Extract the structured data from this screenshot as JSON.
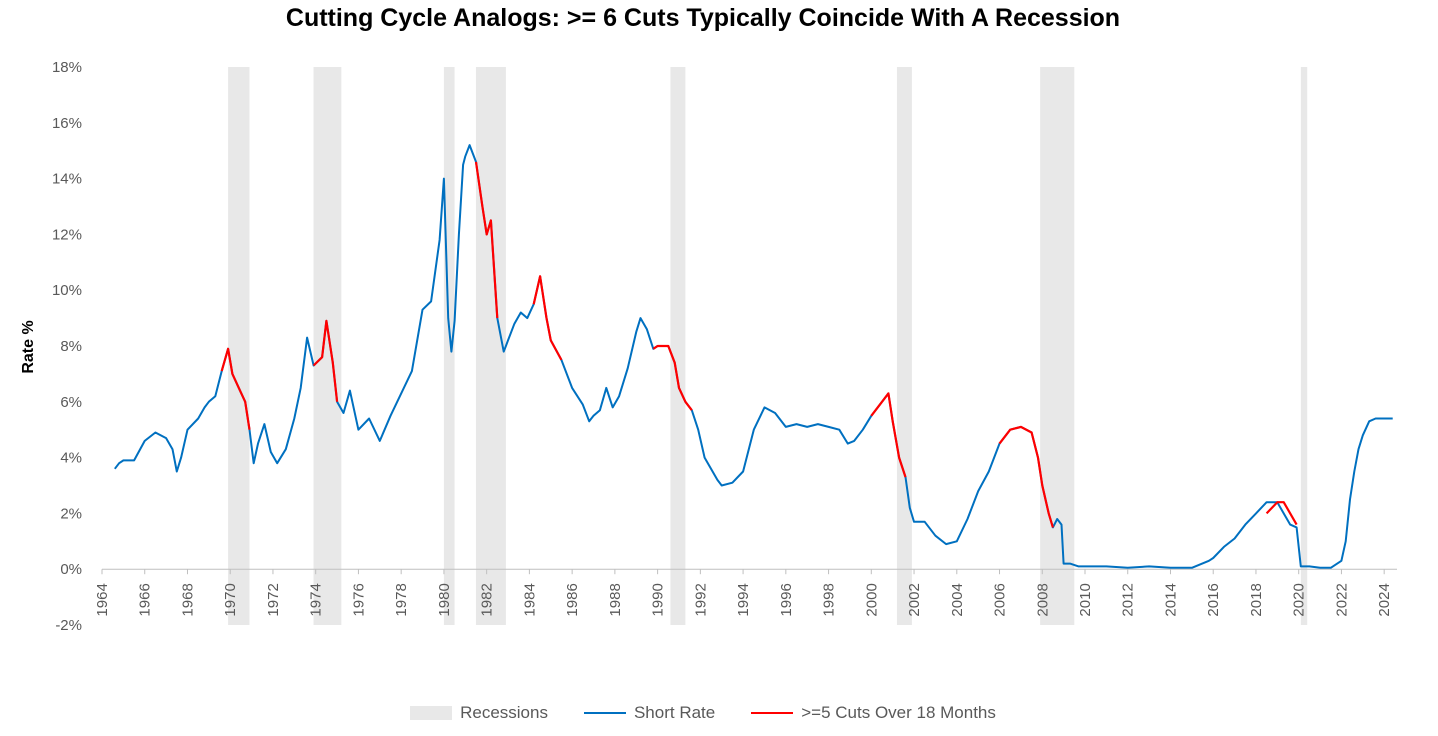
{
  "chart_data": {
    "type": "line",
    "title": "Cutting Cycle Analogs: >= 6 Cuts Typically Coincide With A Recession",
    "xlabel": "",
    "ylabel": "Rate %",
    "ylim": [
      -2,
      18
    ],
    "y_ticks": [
      -2,
      0,
      2,
      4,
      6,
      8,
      10,
      12,
      14,
      16,
      18
    ],
    "y_tick_labels": [
      "-2%",
      "0%",
      "2%",
      "4%",
      "6%",
      "8%",
      "10%",
      "12%",
      "14%",
      "16%",
      "18%"
    ],
    "xlim": [
      1964,
      2024.6
    ],
    "x_ticks": [
      1964,
      1966,
      1968,
      1970,
      1972,
      1974,
      1976,
      1978,
      1980,
      1982,
      1984,
      1986,
      1988,
      1990,
      1992,
      1994,
      1996,
      1998,
      2000,
      2002,
      2004,
      2006,
      2008,
      2010,
      2012,
      2014,
      2016,
      2018,
      2020,
      2022,
      2024
    ],
    "x_tick_labels": [
      "1964",
      "1966",
      "1968",
      "1970",
      "1972",
      "1974",
      "1976",
      "1978",
      "1980",
      "1982",
      "1984",
      "1986",
      "1988",
      "1990",
      "1992",
      "1994",
      "1996",
      "1998",
      "2000",
      "2002",
      "2004",
      "2006",
      "2008",
      "2010",
      "2012",
      "2014",
      "2016",
      "2018",
      "2020",
      "2022",
      "2024"
    ],
    "recessions": [
      [
        1969.9,
        1970.9
      ],
      [
        1973.9,
        1975.2
      ],
      [
        1980.0,
        1980.5
      ],
      [
        1981.5,
        1982.9
      ],
      [
        1990.6,
        1991.3
      ],
      [
        2001.2,
        2001.9
      ],
      [
        2007.9,
        2009.5
      ],
      [
        2020.1,
        2020.4
      ]
    ],
    "series": [
      {
        "name": "Short Rate",
        "color": "#0070c0",
        "x": [
          1964.6,
          1964.8,
          1965.0,
          1965.5,
          1966.0,
          1966.5,
          1967.0,
          1967.3,
          1967.5,
          1967.7,
          1968.0,
          1968.5,
          1968.8,
          1969.0,
          1969.3,
          1969.6,
          1969.9,
          1970.1,
          1970.4,
          1970.7,
          1970.9,
          1971.1,
          1971.3,
          1971.6,
          1971.9,
          1972.2,
          1972.6,
          1973.0,
          1973.3,
          1973.6,
          1973.9,
          1974.3,
          1974.5,
          1974.8,
          1975.0,
          1975.3,
          1975.6,
          1976.0,
          1976.5,
          1977.0,
          1977.5,
          1978.0,
          1978.5,
          1979.0,
          1979.4,
          1979.8,
          1980.0,
          1980.2,
          1980.35,
          1980.5,
          1980.7,
          1980.9,
          1981.0,
          1981.2,
          1981.5,
          1981.8,
          1982.0,
          1982.2,
          1982.5,
          1982.8,
          1982.9,
          1983.0,
          1983.3,
          1983.6,
          1983.9,
          1984.2,
          1984.5,
          1984.8,
          1985.0,
          1985.5,
          1986.0,
          1986.5,
          1986.8,
          1987.0,
          1987.3,
          1987.6,
          1987.9,
          1988.2,
          1988.6,
          1989.0,
          1989.2,
          1989.5,
          1989.8,
          1990.0,
          1990.5,
          1990.8,
          1991.0,
          1991.3,
          1991.6,
          1991.9,
          1992.2,
          1992.5,
          1992.8,
          1993.0,
          1993.5,
          1994.0,
          1994.5,
          1995.0,
          1995.5,
          1996.0,
          1996.5,
          1997.0,
          1997.5,
          1998.0,
          1998.5,
          1998.9,
          1999.2,
          1999.6,
          2000.0,
          2000.5,
          2000.8,
          2001.0,
          2001.3,
          2001.6,
          2001.8,
          2002.0,
          2002.5,
          2003.0,
          2003.5,
          2004.0,
          2004.5,
          2005.0,
          2005.5,
          2006.0,
          2006.5,
          2007.0,
          2007.5,
          2007.8,
          2008.0,
          2008.3,
          2008.5,
          2008.7,
          2008.9,
          2009.0,
          2009.3,
          2009.7,
          2010.0,
          2011.0,
          2012.0,
          2013.0,
          2014.0,
          2015.0,
          2015.8,
          2016.0,
          2016.5,
          2017.0,
          2017.5,
          2018.0,
          2018.5,
          2019.0,
          2019.3,
          2019.6,
          2019.9,
          2020.1,
          2020.2,
          2020.5,
          2021.0,
          2021.5,
          2022.0,
          2022.2,
          2022.4,
          2022.6,
          2022.8,
          2023.0,
          2023.3,
          2023.6,
          2024.0,
          2024.4
        ],
        "values": [
          3.6,
          3.8,
          3.9,
          3.9,
          4.6,
          4.9,
          4.7,
          4.3,
          3.5,
          4.0,
          5.0,
          5.4,
          5.8,
          6.0,
          6.2,
          7.1,
          7.9,
          7.0,
          6.5,
          6.0,
          5.0,
          3.8,
          4.5,
          5.2,
          4.2,
          3.8,
          4.3,
          5.4,
          6.5,
          8.3,
          7.3,
          7.6,
          8.9,
          7.4,
          6.0,
          5.6,
          6.4,
          5.0,
          5.4,
          4.6,
          5.5,
          6.3,
          7.1,
          9.3,
          9.6,
          11.8,
          14.0,
          9.0,
          7.8,
          8.9,
          12.0,
          14.5,
          14.8,
          15.2,
          14.6,
          13.0,
          12.0,
          12.5,
          9.0,
          7.8,
          8.0,
          8.2,
          8.8,
          9.2,
          9.0,
          9.5,
          10.5,
          9.0,
          8.2,
          7.5,
          6.5,
          5.9,
          5.3,
          5.5,
          5.7,
          6.5,
          5.8,
          6.2,
          7.2,
          8.5,
          9.0,
          8.6,
          7.9,
          8.0,
          8.0,
          7.4,
          6.5,
          6.0,
          5.7,
          5.0,
          4.0,
          3.6,
          3.2,
          3.0,
          3.1,
          3.5,
          5.0,
          5.8,
          5.6,
          5.1,
          5.2,
          5.1,
          5.2,
          5.1,
          5.0,
          4.5,
          4.6,
          5.0,
          5.5,
          6.0,
          6.3,
          5.3,
          4.0,
          3.3,
          2.2,
          1.7,
          1.7,
          1.2,
          0.9,
          1.0,
          1.8,
          2.8,
          3.5,
          4.5,
          5.0,
          5.1,
          4.9,
          4.0,
          3.0,
          2.0,
          1.5,
          1.8,
          1.6,
          0.2,
          0.2,
          0.1,
          0.1,
          0.1,
          0.05,
          0.1,
          0.05,
          0.05,
          0.3,
          0.4,
          0.8,
          1.1,
          1.6,
          2.0,
          2.4,
          2.4,
          2.0,
          1.6,
          1.5,
          0.1,
          0.1,
          0.1,
          0.05,
          0.05,
          0.3,
          1.0,
          2.5,
          3.5,
          4.3,
          4.8,
          5.3,
          5.4,
          5.4,
          5.4
        ]
      },
      {
        "name": ">=5 Cuts Over 18 Months",
        "color": "#ff0000",
        "segments": [
          {
            "x": [
              1969.6,
              1969.9,
              1970.1,
              1970.4,
              1970.7,
              1970.9
            ],
            "values": [
              7.1,
              7.9,
              7.0,
              6.5,
              6.0,
              5.0
            ]
          },
          {
            "x": [
              1973.9,
              1974.3,
              1974.5,
              1974.8,
              1975.0
            ],
            "values": [
              7.3,
              7.6,
              8.9,
              7.4,
              6.0
            ]
          },
          {
            "x": [
              1981.5,
              1981.8,
              1982.0,
              1982.2,
              1982.5
            ],
            "values": [
              14.6,
              13.0,
              12.0,
              12.5,
              9.0
            ]
          },
          {
            "x": [
              1984.2,
              1984.5,
              1984.8,
              1985.0,
              1985.5
            ],
            "values": [
              9.5,
              10.5,
              9.0,
              8.2,
              7.5
            ]
          },
          {
            "x": [
              1989.8,
              1990.0,
              1990.5,
              1990.8,
              1991.0,
              1991.3,
              1991.6
            ],
            "values": [
              7.9,
              8.0,
              8.0,
              7.4,
              6.5,
              6.0,
              5.7
            ]
          },
          {
            "x": [
              2000.0,
              2000.5,
              2000.8,
              2001.0,
              2001.3,
              2001.6
            ],
            "values": [
              5.5,
              6.0,
              6.3,
              5.3,
              4.0,
              3.3
            ]
          },
          {
            "x": [
              2006.0,
              2006.5,
              2007.0,
              2007.5,
              2007.8,
              2008.0,
              2008.3,
              2008.5
            ],
            "values": [
              4.5,
              5.0,
              5.1,
              4.9,
              4.0,
              3.0,
              2.0,
              1.5
            ]
          },
          {
            "x": [
              2018.5,
              2019.0,
              2019.3,
              2019.6,
              2019.9
            ],
            "values": [
              2.0,
              2.4,
              2.4,
              2.0,
              1.6
            ]
          }
        ]
      }
    ],
    "legend": [
      {
        "label": "Recessions",
        "kind": "box",
        "color": "#e8e8e8"
      },
      {
        "label": "Short Rate",
        "kind": "line",
        "color": "#0070c0"
      },
      {
        "label": ">=5 Cuts Over 18 Months",
        "kind": "line",
        "color": "#ff0000"
      }
    ],
    "legend_position": "bottom"
  }
}
